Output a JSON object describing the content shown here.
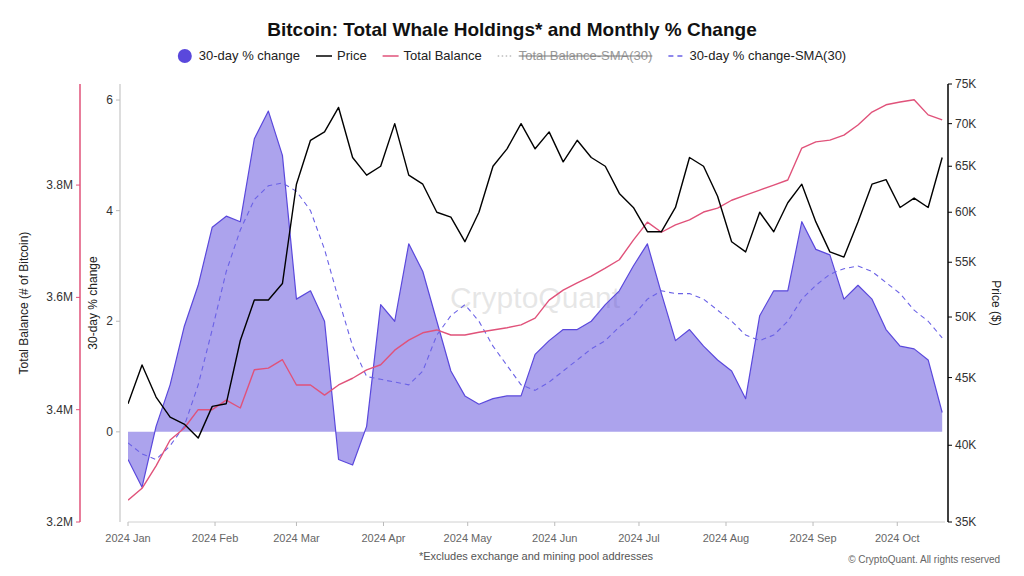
{
  "chart_data": [
    {
      "type": "area",
      "title": "Bitcoin: Total Whale Holdings* and Monthly % Change",
      "ylabel": "30-day % change",
      "annotations": [
        "*Excludes exchange and mining pool addresses",
        "© CryptoQuant. All rights reserved",
        "CryptoQuant"
      ],
      "legend": "top",
      "grid": false,
      "x": [
        0,
        5,
        10,
        15,
        20,
        25,
        30,
        35,
        40,
        45,
        50,
        55,
        60,
        65,
        70,
        75,
        80,
        85,
        90,
        95,
        100,
        105,
        110,
        115,
        120,
        125,
        130,
        135,
        140,
        145,
        150,
        155,
        160,
        165,
        170,
        175,
        180,
        185,
        190,
        195,
        200,
        205,
        210,
        215,
        220,
        225,
        230,
        235,
        240,
        245,
        250,
        255,
        260,
        265,
        270,
        275,
        280,
        285,
        290
      ],
      "xlim": [
        0,
        291
      ],
      "xticks": [
        {
          "value": 0,
          "label": "2024 Jan"
        },
        {
          "value": 31,
          "label": "2024 Feb"
        },
        {
          "value": 60,
          "label": "2024 Mar"
        },
        {
          "value": 91,
          "label": "2024 Apr"
        },
        {
          "value": 121,
          "label": "2024 May"
        },
        {
          "value": 152,
          "label": "2024 Jun"
        },
        {
          "value": 182,
          "label": "2024 Jul"
        },
        {
          "value": 213,
          "label": "2024 Aug"
        },
        {
          "value": 244,
          "label": "2024 Sep"
        },
        {
          "value": 274,
          "label": "2024 Oct"
        }
      ],
      "ylim": [
        -1.63,
        6.29
      ],
      "yticks": [
        0,
        2,
        4,
        6
      ],
      "series": [
        {
          "name": "30-day % change",
          "type": "area",
          "color": "#5a48dc",
          "values": [
            -0.5,
            -1.0,
            0.1,
            0.85,
            1.9,
            2.65,
            3.7,
            3.9,
            3.8,
            5.3,
            5.8,
            5.0,
            2.4,
            2.55,
            2.0,
            -0.5,
            -0.6,
            0.1,
            2.3,
            2.0,
            3.4,
            2.9,
            2.0,
            1.1,
            0.65,
            0.5,
            0.6,
            0.65,
            0.65,
            1.4,
            1.65,
            1.85,
            1.85,
            2.0,
            2.3,
            2.55,
            3.0,
            3.4,
            2.5,
            1.65,
            1.85,
            1.55,
            1.3,
            1.1,
            0.6,
            2.1,
            2.55,
            2.55,
            3.8,
            3.3,
            3.2,
            2.4,
            2.65,
            2.4,
            1.85,
            1.55,
            1.5,
            1.3,
            0.35
          ]
        },
        {
          "name": "30-day % change-SMA(30)",
          "type": "line",
          "line_style": "dashed",
          "color": "#6b62e6",
          "values": [
            -0.2,
            -0.4,
            -0.5,
            -0.25,
            0.1,
            0.85,
            1.85,
            2.9,
            3.65,
            4.2,
            4.45,
            4.5,
            4.35,
            4.0,
            3.3,
            2.4,
            1.55,
            1.0,
            0.95,
            0.9,
            0.85,
            1.1,
            1.75,
            2.1,
            2.3,
            2.0,
            1.55,
            1.2,
            0.85,
            0.75,
            0.9,
            1.1,
            1.3,
            1.5,
            1.65,
            1.9,
            2.1,
            2.4,
            2.55,
            2.5,
            2.5,
            2.4,
            2.2,
            2.0,
            1.75,
            1.65,
            1.75,
            2.0,
            2.4,
            2.65,
            2.85,
            2.95,
            3.0,
            2.9,
            2.7,
            2.5,
            2.2,
            2.0,
            1.7
          ]
        }
      ]
    },
    {
      "type": "line",
      "ylabel": "Total Balance (# of Bitcoin)",
      "grid": false,
      "x": [
        0,
        5,
        10,
        15,
        20,
        25,
        30,
        35,
        40,
        45,
        50,
        55,
        60,
        65,
        70,
        75,
        80,
        85,
        90,
        95,
        100,
        105,
        110,
        115,
        120,
        125,
        130,
        135,
        140,
        145,
        150,
        155,
        160,
        165,
        170,
        175,
        180,
        185,
        190,
        195,
        200,
        205,
        210,
        215,
        220,
        225,
        230,
        235,
        240,
        245,
        250,
        255,
        260,
        265,
        270,
        275,
        280,
        285,
        290
      ],
      "xlim": [
        0,
        291
      ],
      "ylim": [
        3200000,
        3980000
      ],
      "yticks": [
        {
          "value": 3200000,
          "label": "3.2M"
        },
        {
          "value": 3400000,
          "label": "3.4M"
        },
        {
          "value": 3600000,
          "label": "3.6M"
        },
        {
          "value": 3800000,
          "label": "3.8M"
        }
      ],
      "series": [
        {
          "name": "Total Balance",
          "color": "#e0527a",
          "line_style": "solid",
          "values": [
            3239000,
            3260000,
            3300000,
            3346000,
            3367000,
            3400000,
            3400000,
            3417000,
            3403000,
            3471000,
            3474000,
            3489000,
            3444000,
            3444000,
            3426000,
            3444000,
            3456000,
            3471000,
            3480000,
            3506000,
            3524000,
            3537000,
            3542000,
            3533000,
            3533000,
            3538000,
            3542000,
            3546000,
            3551000,
            3563000,
            3595000,
            3613000,
            3626000,
            3638000,
            3652000,
            3667000,
            3702000,
            3734000,
            3716000,
            3729000,
            3738000,
            3752000,
            3759000,
            3773000,
            3782000,
            3791000,
            3800000,
            3809000,
            3866000,
            3877000,
            3880000,
            3889000,
            3907000,
            3930000,
            3943000,
            3948000,
            3952000,
            3925000,
            3916000
          ]
        },
        {
          "name": "Total Balance-SMA(30)",
          "color": "#9a9a9a",
          "line_style": "dotted",
          "values": [
            null,
            null,
            null,
            null,
            null,
            null,
            null,
            null,
            null,
            null,
            null,
            null,
            null,
            null,
            null,
            null,
            null,
            null,
            null,
            null,
            null,
            null,
            null,
            null,
            null,
            null,
            null,
            null,
            null,
            null,
            null,
            null,
            null,
            null,
            null,
            null,
            null,
            null,
            null,
            null,
            null,
            null,
            null,
            null,
            null,
            null,
            null,
            null,
            null,
            null,
            null,
            null,
            null,
            null,
            null,
            null,
            null,
            null,
            null
          ]
        }
      ]
    },
    {
      "type": "line",
      "ylabel": "Price ($)",
      "log": "y",
      "grid": false,
      "x": [
        0,
        5,
        10,
        15,
        20,
        25,
        30,
        35,
        40,
        45,
        50,
        55,
        60,
        65,
        70,
        75,
        80,
        85,
        90,
        95,
        100,
        105,
        110,
        115,
        120,
        125,
        130,
        135,
        140,
        145,
        150,
        155,
        160,
        165,
        170,
        175,
        180,
        185,
        190,
        195,
        200,
        205,
        210,
        215,
        220,
        225,
        230,
        235,
        240,
        245,
        250,
        255,
        260,
        265,
        270,
        275,
        280,
        285,
        290
      ],
      "xlim": [
        0,
        291
      ],
      "ylim": [
        35000,
        75000
      ],
      "yticks": [
        {
          "value": 35000,
          "label": "35K"
        },
        {
          "value": 40000,
          "label": "40K"
        },
        {
          "value": 45000,
          "label": "45K"
        },
        {
          "value": 50000,
          "label": "50K"
        },
        {
          "value": 55000,
          "label": "55K"
        },
        {
          "value": 60000,
          "label": "60K"
        },
        {
          "value": 65000,
          "label": "65K"
        },
        {
          "value": 70000,
          "label": "70K"
        },
        {
          "value": 75000,
          "label": "75K"
        }
      ],
      "series": [
        {
          "name": "Price",
          "color": "#000000",
          "line_style": "solid",
          "values": [
            43000,
            46000,
            43500,
            42000,
            41500,
            40500,
            42800,
            43000,
            48000,
            51500,
            51500,
            53000,
            63000,
            68000,
            69000,
            72000,
            66000,
            64000,
            65000,
            70000,
            64000,
            63000,
            60000,
            59500,
            57000,
            60000,
            65000,
            67000,
            70000,
            67000,
            69000,
            65500,
            68000,
            66000,
            65000,
            62000,
            60500,
            58000,
            58000,
            60500,
            66000,
            65000,
            61700,
            57000,
            56000,
            60000,
            58000,
            61000,
            63000,
            59000,
            56000,
            55500,
            59000,
            63000,
            63500,
            60500,
            61500,
            60500,
            66000
          ]
        }
      ]
    }
  ]
}
